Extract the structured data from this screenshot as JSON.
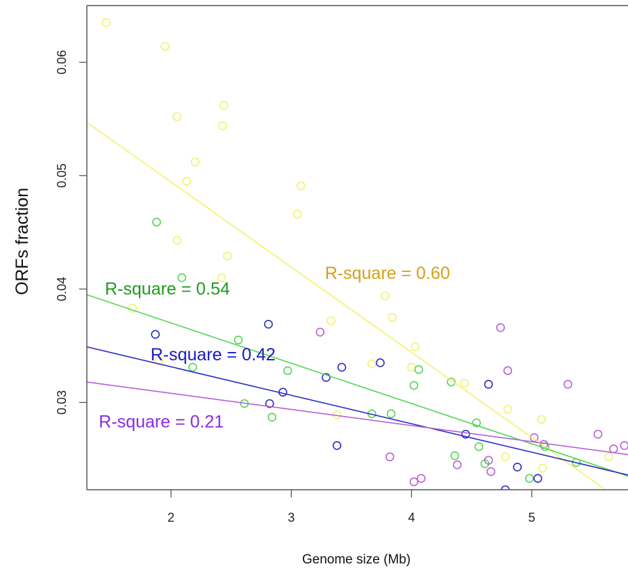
{
  "chart_data": {
    "type": "scatter",
    "xlabel": "Genome size (Mb)",
    "ylabel": "ORFs fraction",
    "xlim": [
      1.3,
      5.8
    ],
    "ylim": [
      0.0223,
      0.065
    ],
    "xticks": [
      2,
      3,
      4,
      5
    ],
    "yticks": [
      0.03,
      0.04,
      0.05,
      0.06
    ],
    "grid": false,
    "series": [
      {
        "color": "#f2f26a",
        "label_color": "#d4a017",
        "annotation": "R-square = 0.60",
        "annotation_pos": [
          3.28,
          0.0409
        ],
        "fit": {
          "x": [
            1.3,
            5.6
          ],
          "y": [
            0.0547,
            0.0224
          ]
        },
        "points": [
          [
            1.46,
            0.0635
          ],
          [
            1.95,
            0.0614
          ],
          [
            2.05,
            0.0552
          ],
          [
            2.44,
            0.0562
          ],
          [
            2.43,
            0.0544
          ],
          [
            2.2,
            0.0512
          ],
          [
            2.13,
            0.0495
          ],
          [
            3.08,
            0.0491
          ],
          [
            3.05,
            0.0466
          ],
          [
            2.05,
            0.0443
          ],
          [
            2.47,
            0.0429
          ],
          [
            2.42,
            0.041
          ],
          [
            1.68,
            0.0383
          ],
          [
            3.78,
            0.0394
          ],
          [
            3.84,
            0.0375
          ],
          [
            3.33,
            0.0372
          ],
          [
            4.03,
            0.0349
          ],
          [
            3.67,
            0.0334
          ],
          [
            4.0,
            0.0331
          ],
          [
            1.9,
            0.0337
          ],
          [
            4.44,
            0.0317
          ],
          [
            4.8,
            0.0294
          ],
          [
            5.08,
            0.0285
          ],
          [
            3.38,
            0.0289
          ],
          [
            4.78,
            0.0252
          ],
          [
            5.09,
            0.0242
          ],
          [
            5.64,
            0.0252
          ]
        ]
      },
      {
        "color": "#55d455",
        "label_color": "#1e9a1e",
        "annotation": "R-square = 0.54",
        "annotation_pos": [
          1.45,
          0.0395
        ],
        "fit": {
          "x": [
            1.3,
            5.8
          ],
          "y": [
            0.0395,
            0.0235
          ]
        },
        "points": [
          [
            1.88,
            0.0459
          ],
          [
            2.09,
            0.041
          ],
          [
            2.56,
            0.0355
          ],
          [
            2.18,
            0.0331
          ],
          [
            2.97,
            0.0328
          ],
          [
            2.61,
            0.0299
          ],
          [
            2.84,
            0.0287
          ],
          [
            3.67,
            0.029
          ],
          [
            3.83,
            0.029
          ],
          [
            4.02,
            0.0315
          ],
          [
            4.06,
            0.0329
          ],
          [
            4.33,
            0.0318
          ],
          [
            4.54,
            0.0282
          ],
          [
            4.56,
            0.0261
          ],
          [
            4.36,
            0.0253
          ],
          [
            4.61,
            0.0246
          ],
          [
            4.98,
            0.0233
          ],
          [
            5.11,
            0.0261
          ],
          [
            5.37,
            0.0247
          ]
        ]
      },
      {
        "color": "#2b2bc8",
        "label_color": "#1a1ac4",
        "annotation": "R-square = 0.42",
        "annotation_pos": [
          1.83,
          0.0337
        ],
        "fit": {
          "x": [
            1.3,
            5.8
          ],
          "y": [
            0.0349,
            0.0236
          ]
        },
        "points": [
          [
            1.87,
            0.036
          ],
          [
            2.81,
            0.0369
          ],
          [
            2.93,
            0.0309
          ],
          [
            2.82,
            0.0299
          ],
          [
            3.29,
            0.0322
          ],
          [
            3.42,
            0.0331
          ],
          [
            3.74,
            0.0335
          ],
          [
            3.38,
            0.0262
          ],
          [
            4.45,
            0.0272
          ],
          [
            4.64,
            0.0316
          ],
          [
            4.88,
            0.0243
          ],
          [
            5.05,
            0.0233
          ],
          [
            4.78,
            0.0223
          ]
        ]
      },
      {
        "color": "#b860d8",
        "label_color": "#8a2be2",
        "annotation": "R-square = 0.21",
        "annotation_pos": [
          1.4,
          0.0278
        ],
        "fit": {
          "x": [
            1.3,
            5.8
          ],
          "y": [
            0.0318,
            0.0254
          ]
        },
        "points": [
          [
            3.24,
            0.0362
          ],
          [
            4.74,
            0.0366
          ],
          [
            4.8,
            0.0328
          ],
          [
            5.3,
            0.0316
          ],
          [
            5.55,
            0.0272
          ],
          [
            5.02,
            0.0269
          ],
          [
            5.1,
            0.0263
          ],
          [
            5.68,
            0.0259
          ],
          [
            5.77,
            0.0262
          ],
          [
            3.82,
            0.0252
          ],
          [
            4.38,
            0.0245
          ],
          [
            4.64,
            0.0249
          ],
          [
            4.66,
            0.0239
          ],
          [
            4.02,
            0.023
          ],
          [
            4.08,
            0.0233
          ]
        ]
      }
    ]
  }
}
